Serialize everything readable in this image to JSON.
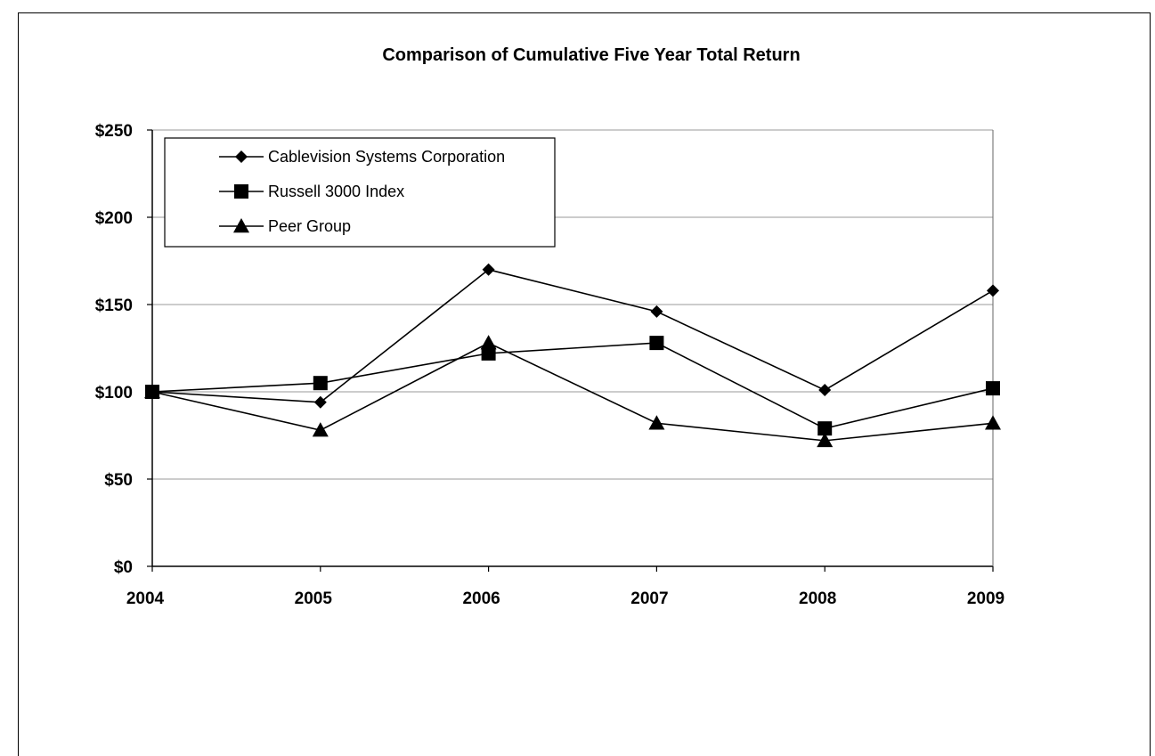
{
  "chart_data": {
    "type": "line",
    "title": "Comparison of Cumulative Five Year Total Return",
    "xlabel": "",
    "ylabel": "",
    "x": [
      "2004",
      "2005",
      "2006",
      "2007",
      "2008",
      "2009"
    ],
    "ylim": [
      0,
      250
    ],
    "yticks": [
      0,
      50,
      100,
      150,
      200,
      250
    ],
    "ytick_labels": [
      "$0",
      "$50",
      "$100",
      "$150",
      "$200",
      "$250"
    ],
    "grid": true,
    "legend_position": "top-left",
    "series": [
      {
        "name": "Cablevision Systems Corporation",
        "marker": "diamond",
        "values": [
          100,
          94,
          170,
          146,
          101,
          158
        ]
      },
      {
        "name": "Russell 3000 Index",
        "marker": "square",
        "values": [
          100,
          105,
          122,
          128,
          79,
          102
        ]
      },
      {
        "name": "Peer Group",
        "marker": "triangle",
        "values": [
          100,
          78,
          128,
          82,
          72,
          82
        ]
      }
    ],
    "colors": {
      "line": "#000000",
      "grid": "#999999",
      "background": "#ffffff"
    }
  }
}
